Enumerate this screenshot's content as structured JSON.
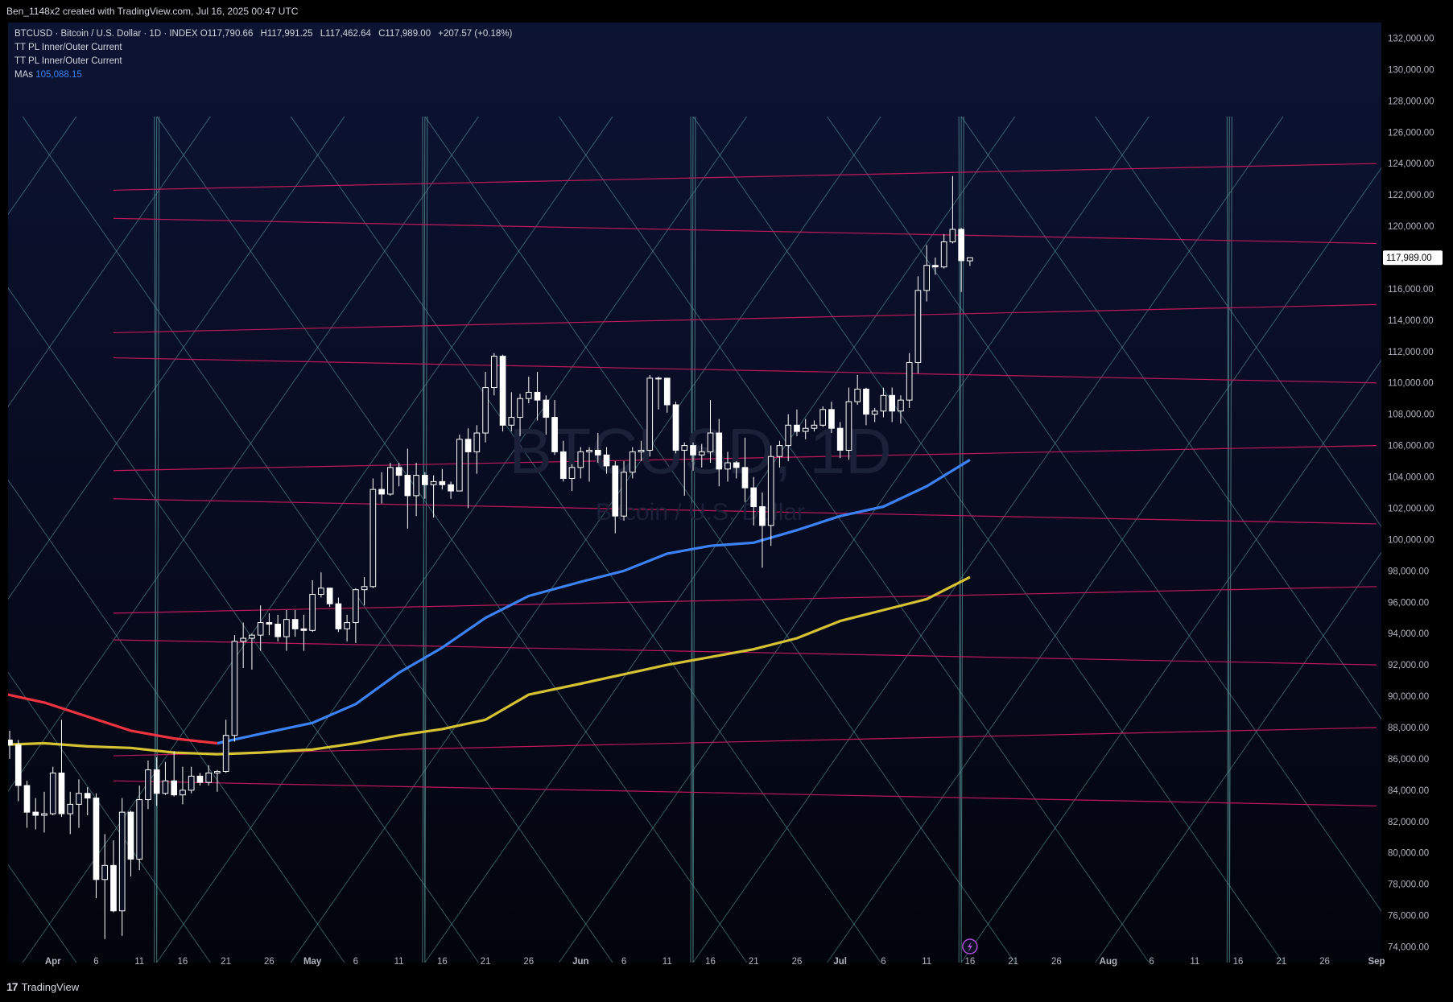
{
  "header": {
    "attribution": "Ben_1148x2 created with TradingView.com, Jul 16, 2025 00:47 UTC"
  },
  "legend": {
    "symbol": "BTCUSD · Bitcoin / U.S. Dollar · 1D · INDEX",
    "open": "O117,790.66",
    "high": "H117,991.25",
    "low": "L117,462.64",
    "close": "C117,989.00",
    "change": "+207.57 (+0.18%)",
    "indicator1": "TT PL Inner/Outer Current",
    "indicator2": "TT PL Inner/Outer Current",
    "ma_label": "MAs",
    "ma_value": "105,088.15"
  },
  "watermark": {
    "line1": "BTCUSD, 1D",
    "line2": "Bitcoin / U.S. Dollar"
  },
  "footer": {
    "logo_text": "TradingView",
    "logo_mark": "17"
  },
  "colors": {
    "bull": "#ffffff",
    "bear": "#ffffff",
    "ma_blue": "#3b82f6",
    "ma_red": "#ef3340",
    "ma_yellow": "#d6c232",
    "lattice": "#5f9ea0",
    "pink": "#c2185b"
  },
  "chart_data": {
    "type": "candlestick",
    "interval": "1D",
    "ylim": [
      73000,
      133000
    ],
    "xlim": [
      "2025-03-27",
      "2025-09-01"
    ],
    "current_price": "117,989.00",
    "y_ticks": [
      "74,000.00",
      "76,000.00",
      "78,000.00",
      "80,000.00",
      "82,000.00",
      "84,000.00",
      "86,000.00",
      "88,000.00",
      "90,000.00",
      "92,000.00",
      "94,000.00",
      "96,000.00",
      "98,000.00",
      "100,000.00",
      "102,000.00",
      "104,000.00",
      "106,000.00",
      "108,000.00",
      "110,000.00",
      "112,000.00",
      "114,000.00",
      "116,000.00",
      "118,000.00",
      "120,000.00",
      "122,000.00",
      "124,000.00",
      "126,000.00",
      "128,000.00",
      "130,000.00",
      "132,000.00"
    ],
    "x_ticks": [
      {
        "date": "2025-04-01",
        "label": "Apr",
        "bold": true
      },
      {
        "date": "2025-04-06",
        "label": "6"
      },
      {
        "date": "2025-04-11",
        "label": "11"
      },
      {
        "date": "2025-04-16",
        "label": "16"
      },
      {
        "date": "2025-04-21",
        "label": "21"
      },
      {
        "date": "2025-04-26",
        "label": "26"
      },
      {
        "date": "2025-05-01",
        "label": "May",
        "bold": true
      },
      {
        "date": "2025-05-06",
        "label": "6"
      },
      {
        "date": "2025-05-11",
        "label": "11"
      },
      {
        "date": "2025-05-16",
        "label": "16"
      },
      {
        "date": "2025-05-21",
        "label": "21"
      },
      {
        "date": "2025-05-26",
        "label": "26"
      },
      {
        "date": "2025-06-01",
        "label": "Jun",
        "bold": true
      },
      {
        "date": "2025-06-06",
        "label": "6"
      },
      {
        "date": "2025-06-11",
        "label": "11"
      },
      {
        "date": "2025-06-16",
        "label": "16"
      },
      {
        "date": "2025-06-21",
        "label": "21"
      },
      {
        "date": "2025-06-26",
        "label": "26"
      },
      {
        "date": "2025-07-01",
        "label": "Jul",
        "bold": true
      },
      {
        "date": "2025-07-06",
        "label": "6"
      },
      {
        "date": "2025-07-11",
        "label": "11"
      },
      {
        "date": "2025-07-16",
        "label": "16"
      },
      {
        "date": "2025-07-21",
        "label": "21"
      },
      {
        "date": "2025-07-26",
        "label": "26"
      },
      {
        "date": "2025-08-01",
        "label": "Aug",
        "bold": true
      },
      {
        "date": "2025-08-06",
        "label": "6"
      },
      {
        "date": "2025-08-11",
        "label": "11"
      },
      {
        "date": "2025-08-16",
        "label": "16"
      },
      {
        "date": "2025-08-21",
        "label": "21"
      },
      {
        "date": "2025-08-26",
        "label": "26"
      },
      {
        "date": "2025-09-01",
        "label": "Sep",
        "bold": true
      }
    ],
    "candles": [
      [
        "2025-03-27",
        87200,
        87800,
        86000,
        86900
      ],
      [
        "2025-03-28",
        86900,
        87200,
        83300,
        84300
      ],
      [
        "2025-03-29",
        84300,
        84600,
        81600,
        82600
      ],
      [
        "2025-03-30",
        82600,
        83500,
        81500,
        82400
      ],
      [
        "2025-03-31",
        82400,
        83900,
        81300,
        82500
      ],
      [
        "2025-04-01",
        82500,
        85500,
        82400,
        85100
      ],
      [
        "2025-04-02",
        85100,
        88500,
        82300,
        82500
      ],
      [
        "2025-04-03",
        82500,
        83900,
        81200,
        83100
      ],
      [
        "2025-04-04",
        83100,
        84700,
        81600,
        83800
      ],
      [
        "2025-04-05",
        83800,
        84200,
        82400,
        83500
      ],
      [
        "2025-04-06",
        83500,
        83800,
        77100,
        78300
      ],
      [
        "2025-04-07",
        78300,
        81200,
        74500,
        79200
      ],
      [
        "2025-04-08",
        79200,
        80800,
        76200,
        76300
      ],
      [
        "2025-04-09",
        76300,
        83500,
        74700,
        82600
      ],
      [
        "2025-04-10",
        82600,
        82700,
        78500,
        79600
      ],
      [
        "2025-04-11",
        79600,
        84300,
        78900,
        83400
      ],
      [
        "2025-04-12",
        83400,
        85900,
        82800,
        85300
      ],
      [
        "2025-04-13",
        85300,
        86100,
        83000,
        83800
      ],
      [
        "2025-04-14",
        83800,
        85800,
        83700,
        84600
      ],
      [
        "2025-04-15",
        84600,
        86500,
        83600,
        83700
      ],
      [
        "2025-04-16",
        83700,
        85500,
        83100,
        84000
      ],
      [
        "2025-04-17",
        84000,
        85500,
        83800,
        84900
      ],
      [
        "2025-04-18",
        84900,
        85100,
        84300,
        84500
      ],
      [
        "2025-04-19",
        84500,
        85600,
        84300,
        85100
      ],
      [
        "2025-04-20",
        85100,
        85300,
        83900,
        85200
      ],
      [
        "2025-04-21",
        85200,
        88500,
        85100,
        87500
      ],
      [
        "2025-04-22",
        87500,
        93900,
        87100,
        93500
      ],
      [
        "2025-04-23",
        93500,
        94700,
        91800,
        93700
      ],
      [
        "2025-04-24",
        93700,
        94000,
        91700,
        93900
      ],
      [
        "2025-04-25",
        93900,
        95800,
        92900,
        94700
      ],
      [
        "2025-04-26",
        94700,
        95300,
        93900,
        94600
      ],
      [
        "2025-04-27",
        94600,
        95200,
        93500,
        93800
      ],
      [
        "2025-04-28",
        93800,
        95500,
        92900,
        94900
      ],
      [
        "2025-04-29",
        94900,
        95500,
        93800,
        94300
      ],
      [
        "2025-04-30",
        94300,
        95200,
        92900,
        94200
      ],
      [
        "2025-05-01",
        94200,
        97400,
        94100,
        96500
      ],
      [
        "2025-05-02",
        96500,
        97900,
        96300,
        96900
      ],
      [
        "2025-05-03",
        96900,
        96900,
        95700,
        95900
      ],
      [
        "2025-05-04",
        95900,
        96300,
        94100,
        94300
      ],
      [
        "2025-05-05",
        94300,
        95200,
        93500,
        94700
      ],
      [
        "2025-05-06",
        94700,
        96900,
        93400,
        96800
      ],
      [
        "2025-05-07",
        96800,
        97600,
        95800,
        97000
      ],
      [
        "2025-05-08",
        97000,
        103900,
        96900,
        103200
      ],
      [
        "2025-05-09",
        103200,
        104300,
        102300,
        102900
      ],
      [
        "2025-05-10",
        102900,
        104900,
        102800,
        104600
      ],
      [
        "2025-05-11",
        104600,
        104900,
        103400,
        104100
      ],
      [
        "2025-05-12",
        104100,
        105800,
        100700,
        102800
      ],
      [
        "2025-05-13",
        102800,
        104900,
        101500,
        104100
      ],
      [
        "2025-05-14",
        104100,
        104300,
        102600,
        103500
      ],
      [
        "2025-05-15",
        103500,
        104100,
        101400,
        103700
      ],
      [
        "2025-05-16",
        103700,
        104500,
        103200,
        103500
      ],
      [
        "2025-05-17",
        103500,
        103700,
        102600,
        103100
      ],
      [
        "2025-05-18",
        103100,
        106700,
        103100,
        106400
      ],
      [
        "2025-05-19",
        106400,
        107100,
        102000,
        105600
      ],
      [
        "2025-05-20",
        105600,
        107300,
        104200,
        106800
      ],
      [
        "2025-05-21",
        106800,
        110700,
        106200,
        109700
      ],
      [
        "2025-05-22",
        109700,
        111900,
        109200,
        111700
      ],
      [
        "2025-05-23",
        111700,
        111800,
        106900,
        107300
      ],
      [
        "2025-05-24",
        107300,
        109400,
        106900,
        107800
      ],
      [
        "2025-05-25",
        107800,
        109300,
        106600,
        109000
      ],
      [
        "2025-05-26",
        109000,
        110400,
        108700,
        109400
      ],
      [
        "2025-05-27",
        109400,
        110700,
        107600,
        108900
      ],
      [
        "2025-05-28",
        108900,
        109200,
        106700,
        107800
      ],
      [
        "2025-05-29",
        107800,
        108900,
        105400,
        105600
      ],
      [
        "2025-05-30",
        105600,
        106300,
        103700,
        103900
      ],
      [
        "2025-05-31",
        103900,
        104800,
        103100,
        104600
      ],
      [
        "2025-06-01",
        104600,
        105900,
        103900,
        105600
      ],
      [
        "2025-06-02",
        105600,
        105900,
        103700,
        105700
      ],
      [
        "2025-06-03",
        105700,
        106800,
        104900,
        105400
      ],
      [
        "2025-06-04",
        105400,
        105900,
        104200,
        104700
      ],
      [
        "2025-06-05",
        104700,
        105000,
        100400,
        101500
      ],
      [
        "2025-06-06",
        101500,
        105000,
        101200,
        104300
      ],
      [
        "2025-06-07",
        104300,
        105900,
        103900,
        105600
      ],
      [
        "2025-06-08",
        105600,
        106300,
        105000,
        105700
      ],
      [
        "2025-06-09",
        105700,
        110500,
        105300,
        110300
      ],
      [
        "2025-06-10",
        110300,
        110400,
        108300,
        110300
      ],
      [
        "2025-06-11",
        110300,
        110300,
        108100,
        108600
      ],
      [
        "2025-06-12",
        108600,
        108800,
        105500,
        105700
      ],
      [
        "2025-06-13",
        105700,
        106200,
        102800,
        106000
      ],
      [
        "2025-06-14",
        106000,
        106200,
        104400,
        105400
      ],
      [
        "2025-06-15",
        105400,
        106100,
        104600,
        105600
      ],
      [
        "2025-06-16",
        105600,
        108900,
        104900,
        106800
      ],
      [
        "2025-06-17",
        106800,
        107700,
        103400,
        104500
      ],
      [
        "2025-06-18",
        104500,
        105600,
        103700,
        104900
      ],
      [
        "2025-06-19",
        104900,
        105000,
        103900,
        104600
      ],
      [
        "2025-06-20",
        104600,
        106500,
        102400,
        103300
      ],
      [
        "2025-06-21",
        103300,
        104000,
        100900,
        102100
      ],
      [
        "2025-06-22",
        102100,
        103000,
        98200,
        100900
      ],
      [
        "2025-06-23",
        100900,
        106000,
        99600,
        105300
      ],
      [
        "2025-06-24",
        105300,
        106300,
        104600,
        106000
      ],
      [
        "2025-06-25",
        106000,
        108000,
        105000,
        107300
      ],
      [
        "2025-06-26",
        107300,
        108300,
        106600,
        106900
      ],
      [
        "2025-06-27",
        106900,
        107700,
        106400,
        107100
      ],
      [
        "2025-06-28",
        107100,
        107600,
        106900,
        107300
      ],
      [
        "2025-06-29",
        107300,
        108500,
        107200,
        108300
      ],
      [
        "2025-06-30",
        108300,
        108800,
        106800,
        107100
      ],
      [
        "2025-07-01",
        107100,
        107500,
        105200,
        105700
      ],
      [
        "2025-07-02",
        105700,
        109700,
        105100,
        108800
      ],
      [
        "2025-07-03",
        108800,
        110500,
        108600,
        109600
      ],
      [
        "2025-07-04",
        109600,
        109700,
        107300,
        108000
      ],
      [
        "2025-07-05",
        108000,
        108400,
        107500,
        108200
      ],
      [
        "2025-07-06",
        108200,
        109700,
        107800,
        109200
      ],
      [
        "2025-07-07",
        109200,
        109700,
        107500,
        108200
      ],
      [
        "2025-07-08",
        108200,
        109200,
        107400,
        108900
      ],
      [
        "2025-07-09",
        108900,
        111900,
        108400,
        111300
      ],
      [
        "2025-07-10",
        111300,
        116800,
        110600,
        115900
      ],
      [
        "2025-07-11",
        115900,
        118800,
        115200,
        117500
      ],
      [
        "2025-07-12",
        117500,
        118000,
        116900,
        117400
      ],
      [
        "2025-07-13",
        117400,
        119500,
        117300,
        119000
      ],
      [
        "2025-07-14",
        119000,
        123200,
        118900,
        119800
      ],
      [
        "2025-07-15",
        119800,
        119900,
        115800,
        117800
      ],
      [
        "2025-07-16",
        117790.66,
        117991.25,
        117462.64,
        117989.0
      ]
    ],
    "series": [
      {
        "name": "MA (fast)",
        "color": "#3b82f6",
        "x": [
          "2025-04-20",
          "2025-04-25",
          "2025-05-01",
          "2025-05-06",
          "2025-05-11",
          "2025-05-16",
          "2025-05-21",
          "2025-05-26",
          "2025-06-01",
          "2025-06-06",
          "2025-06-11",
          "2025-06-16",
          "2025-06-21",
          "2025-06-26",
          "2025-07-01",
          "2025-07-06",
          "2025-07-11",
          "2025-07-16"
        ],
        "values": [
          87000,
          87600,
          88300,
          89500,
          91500,
          93100,
          95000,
          96400,
          97300,
          98000,
          99100,
          99600,
          99800,
          100600,
          101500,
          102100,
          103400,
          105088
        ]
      },
      {
        "name": "MA (fast, earlier)",
        "color": "#ef3340",
        "x": [
          "2025-03-26",
          "2025-03-31",
          "2025-04-05",
          "2025-04-10",
          "2025-04-15",
          "2025-04-20"
        ],
        "values": [
          90200,
          89600,
          88700,
          87800,
          87300,
          87000
        ]
      },
      {
        "name": "MA (slow)",
        "color": "#d6c232",
        "x": [
          "2025-03-26",
          "2025-03-31",
          "2025-04-05",
          "2025-04-10",
          "2025-04-15",
          "2025-04-20",
          "2025-04-25",
          "2025-05-01",
          "2025-05-06",
          "2025-05-11",
          "2025-05-16",
          "2025-05-21",
          "2025-05-26",
          "2025-06-01",
          "2025-06-06",
          "2025-06-11",
          "2025-06-16",
          "2025-06-21",
          "2025-06-26",
          "2025-07-01",
          "2025-07-06",
          "2025-07-11",
          "2025-07-16"
        ],
        "values": [
          86900,
          87000,
          86800,
          86700,
          86400,
          86300,
          86400,
          86600,
          87000,
          87500,
          87900,
          88500,
          90100,
          90800,
          91400,
          92000,
          92500,
          93000,
          93700,
          94800,
          95500,
          96200,
          97600
        ]
      }
    ],
    "pink_lines": [
      [
        "2025-04-08",
        122300,
        "2025-09-01",
        124000
      ],
      [
        "2025-04-08",
        120500,
        "2025-09-01",
        118900
      ],
      [
        "2025-04-08",
        113200,
        "2025-09-01",
        115000
      ],
      [
        "2025-04-08",
        111600,
        "2025-09-01",
        110000
      ],
      [
        "2025-04-08",
        104400,
        "2025-09-01",
        106000
      ],
      [
        "2025-04-08",
        102600,
        "2025-09-01",
        101000
      ],
      [
        "2025-04-08",
        95300,
        "2025-09-01",
        97000
      ],
      [
        "2025-04-08",
        93600,
        "2025-09-01",
        92000
      ],
      [
        "2025-04-08",
        86200,
        "2025-09-01",
        88000
      ],
      [
        "2025-04-08",
        84600,
        "2025-09-01",
        83000
      ]
    ],
    "lattice_pillars": [
      "2025-04-13",
      "2025-05-14",
      "2025-06-14",
      "2025-07-15",
      "2025-08-15"
    ],
    "lattice_range": [
      73000,
      127000
    ]
  }
}
